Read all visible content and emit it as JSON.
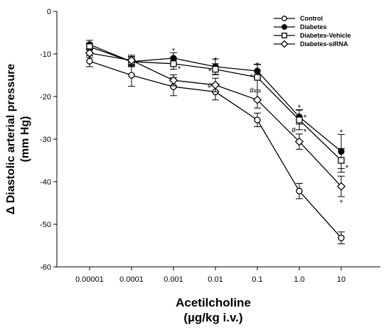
{
  "chart_data": {
    "type": "line",
    "xlabel": "Acetilcholine",
    "xlabel_unit": "(µg/kg i.v.)",
    "ylabel": "Δ Diastolic arterial pressure",
    "ylabel_unit": "(mm Hg)",
    "categories": [
      "0.00001",
      "0.0001",
      "0.001",
      "0.01",
      "0.1",
      "1.0",
      "10"
    ],
    "ylim": [
      -60,
      0
    ],
    "yticks": [
      0,
      -10,
      -20,
      -30,
      -40,
      -50,
      -60
    ],
    "ytick_labels": [
      "0",
      "-10",
      "-20",
      "-30",
      "-40",
      "-50",
      "-60"
    ],
    "legend_position": "top-right",
    "grid": false,
    "series": [
      {
        "name": "Control",
        "marker": "circle-open",
        "values": [
          -11.7,
          -15.0,
          -17.7,
          -18.9,
          -25.5,
          -42.2,
          -53.2
        ],
        "errors": [
          1.3,
          2.6,
          2.1,
          1.9,
          1.6,
          1.8,
          1.4
        ]
      },
      {
        "name": "Diabetes",
        "marker": "circle-filled",
        "values": [
          -7.8,
          -11.8,
          -11.0,
          -13.0,
          -14.0,
          -24.8,
          -32.9
        ],
        "errors": [
          1.0,
          1.2,
          1.3,
          1.8,
          1.6,
          1.7,
          4.0
        ]
      },
      {
        "name": "Diabetes-Vehicle",
        "marker": "square-open",
        "values": [
          -8.3,
          -11.8,
          -12.3,
          -13.6,
          -15.5,
          -25.5,
          -35.0
        ],
        "errors": [
          0.8,
          1.0,
          1.3,
          1.3,
          3.0,
          2.3,
          2.8
        ]
      },
      {
        "name": "Diabetes-siRNA",
        "marker": "diamond-open",
        "values": [
          -9.8,
          -11.5,
          -16.2,
          -17.3,
          -20.8,
          -30.6,
          -41.1
        ],
        "errors": [
          1.0,
          1.2,
          1.3,
          1.6,
          1.9,
          1.8,
          2.4
        ]
      }
    ],
    "annotations": [
      {
        "text": "*",
        "x": "0.001",
        "y": -9.2
      },
      {
        "text": "*",
        "x": "0.001",
        "y": -13.4,
        "side": "right"
      },
      {
        "text": "*",
        "x": "0.01",
        "y": -11.3
      },
      {
        "text": "*",
        "x": "0.01",
        "y": -14.0,
        "side": "left"
      },
      {
        "text": "#",
        "x": "0.01",
        "y": -17.3,
        "side": "left"
      },
      {
        "text": "*",
        "x": "0.1",
        "y": -12.5
      },
      {
        "text": "*",
        "x": "0.1",
        "y": -15.3,
        "side": "left"
      },
      {
        "text": "#",
        "x": "0.1",
        "y": -18.5,
        "side": "left"
      },
      {
        "text": "*",
        "x": "1.0",
        "y": -22.5
      },
      {
        "text": "*",
        "x": "1.0",
        "y": -24.8,
        "side": "right"
      },
      {
        "text": "#",
        "x": "1.0",
        "y": -27.8,
        "side": "left"
      },
      {
        "text": "*",
        "x": "1.0",
        "y": -28.2,
        "side": "right"
      },
      {
        "text": "*",
        "x": "10",
        "y": -28.3
      },
      {
        "text": "*",
        "x": "10",
        "y": -36.7,
        "side": "right"
      },
      {
        "text": "*",
        "x": "10",
        "y": -44.8
      }
    ]
  }
}
